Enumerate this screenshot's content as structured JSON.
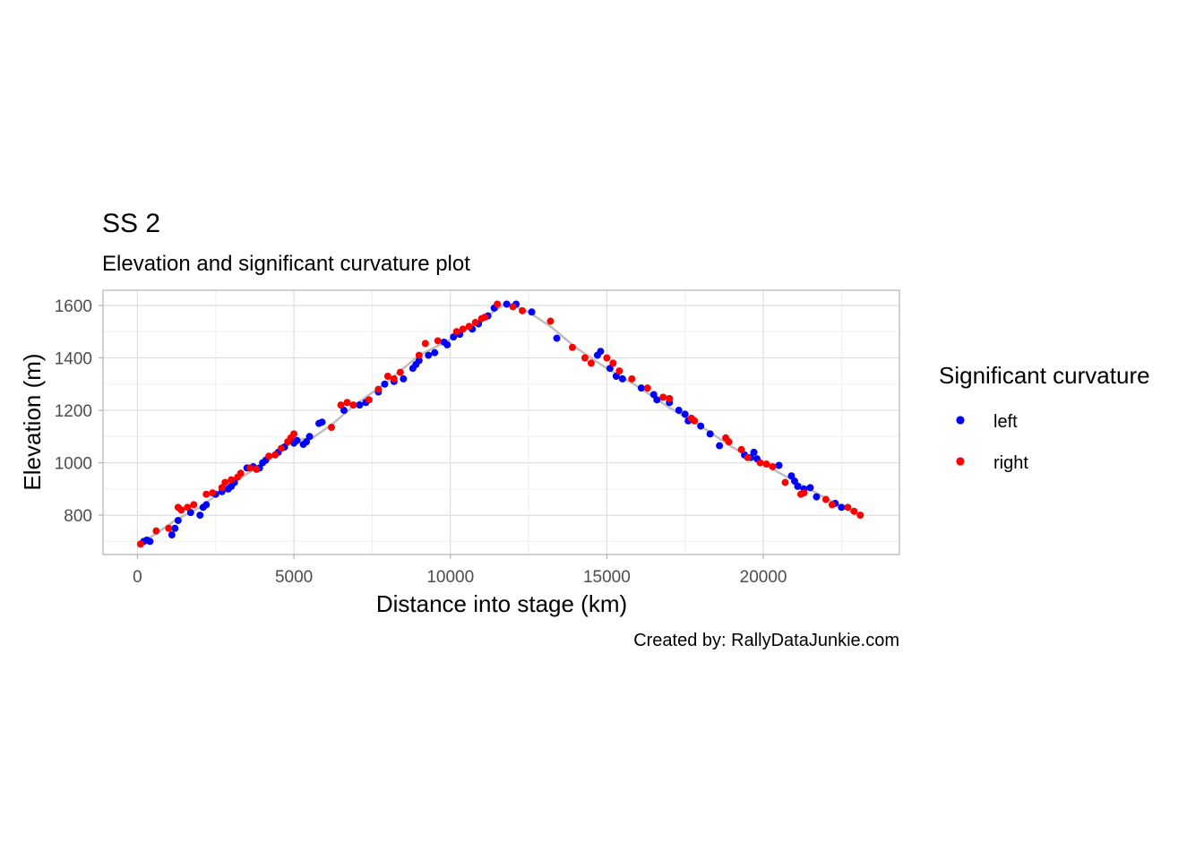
{
  "chart_data": {
    "type": "scatter",
    "title": "SS 2",
    "subtitle": "Elevation and significant curvature plot",
    "xlabel": "Distance into stage (km)",
    "ylabel": "Elevation (m)",
    "caption": "Created by: RallyDataJunkie.com",
    "xlim": [
      -1100,
      24350
    ],
    "ylim": [
      650,
      1658
    ],
    "xticks": [
      0,
      5000,
      10000,
      15000,
      20000
    ],
    "xtick_labels": [
      "0",
      "5000",
      "10000",
      "15000",
      "20000"
    ],
    "yticks": [
      800,
      1000,
      1200,
      1400,
      1600
    ],
    "ytick_labels": [
      "800",
      "1000",
      "1200",
      "1400",
      "1600"
    ],
    "grid": true,
    "legend_position": "right",
    "legend": {
      "title": "Significant curvature",
      "entries": [
        {
          "label": "left",
          "color": "#0000ff"
        },
        {
          "label": "right",
          "color": "#ff0000"
        }
      ]
    },
    "profile_line": {
      "color": "#bebebe",
      "x": [
        0,
        600,
        1200,
        2000,
        3000,
        4000,
        5000,
        5600,
        6200,
        7000,
        8000,
        9000,
        10000,
        11000,
        11800,
        12500,
        13200,
        14000,
        15000,
        16000,
        17000,
        18000,
        19000,
        20000,
        21000,
        22000,
        23100
      ],
      "y": [
        685,
        730,
        780,
        830,
        920,
        995,
        1085,
        1095,
        1145,
        1225,
        1310,
        1410,
        1470,
        1545,
        1610,
        1575,
        1520,
        1440,
        1360,
        1290,
        1210,
        1140,
        1060,
        995,
        930,
        865,
        795
      ]
    },
    "series": [
      {
        "name": "left",
        "color": "#0000ff",
        "x": [
          200,
          300,
          400,
          1100,
          1200,
          1300,
          1700,
          2000,
          2100,
          2200,
          2500,
          2700,
          2900,
          3000,
          3100,
          3500,
          3700,
          3900,
          4000,
          4100,
          4500,
          4700,
          5000,
          5100,
          5300,
          5400,
          5500,
          5800,
          5900,
          6600,
          7100,
          7300,
          7700,
          7900,
          8200,
          8500,
          8800,
          8900,
          9000,
          9300,
          9500,
          9800,
          9900,
          10100,
          10300,
          10700,
          10900,
          11200,
          11400,
          11800,
          12100,
          12600,
          13400,
          14700,
          14800,
          15100,
          15300,
          15500,
          16100,
          16500,
          16600,
          17000,
          17300,
          17500,
          17600,
          18000,
          18300,
          18600,
          19400,
          19600,
          19700,
          19800,
          20500,
          20900,
          21000,
          21100,
          21300,
          21500,
          21700,
          22300,
          22500
        ],
        "y": [
          700,
          705,
          700,
          725,
          750,
          780,
          810,
          800,
          830,
          840,
          880,
          890,
          900,
          910,
          925,
          980,
          985,
          980,
          1000,
          1010,
          1040,
          1060,
          1075,
          1085,
          1070,
          1080,
          1100,
          1150,
          1155,
          1200,
          1220,
          1230,
          1270,
          1300,
          1310,
          1320,
          1360,
          1375,
          1390,
          1410,
          1420,
          1460,
          1450,
          1480,
          1490,
          1510,
          1530,
          1560,
          1590,
          1605,
          1605,
          1575,
          1475,
          1410,
          1425,
          1360,
          1330,
          1320,
          1285,
          1260,
          1240,
          1230,
          1200,
          1185,
          1160,
          1140,
          1110,
          1065,
          1030,
          1020,
          1040,
          1015,
          990,
          950,
          930,
          910,
          900,
          905,
          870,
          845,
          830
        ],
        "marker_size": 8
      },
      {
        "name": "right",
        "color": "#ff0000",
        "x": [
          100,
          600,
          1000,
          1300,
          1400,
          1600,
          1800,
          2200,
          2400,
          2700,
          2800,
          3000,
          3200,
          3300,
          3600,
          3800,
          4200,
          4400,
          4600,
          4800,
          4900,
          5000,
          6200,
          6500,
          6700,
          6900,
          7400,
          7700,
          8000,
          8200,
          8400,
          9000,
          9200,
          9600,
          10200,
          10400,
          10600,
          10800,
          11000,
          11100,
          11500,
          12000,
          12300,
          13200,
          13900,
          14300,
          14500,
          15000,
          15200,
          15400,
          15800,
          16300,
          16800,
          17000,
          17700,
          17800,
          18800,
          18900,
          19300,
          19500,
          19900,
          20100,
          20300,
          20700,
          21200,
          21300,
          22000,
          22200,
          22700,
          22900,
          23100
        ],
        "y": [
          690,
          740,
          750,
          830,
          820,
          830,
          840,
          880,
          885,
          905,
          925,
          935,
          945,
          960,
          980,
          975,
          1025,
          1030,
          1055,
          1080,
          1095,
          1110,
          1135,
          1220,
          1230,
          1220,
          1240,
          1280,
          1330,
          1320,
          1345,
          1410,
          1455,
          1465,
          1500,
          1510,
          1520,
          1535,
          1550,
          1555,
          1605,
          1595,
          1580,
          1540,
          1440,
          1400,
          1380,
          1400,
          1380,
          1350,
          1320,
          1285,
          1250,
          1245,
          1170,
          1160,
          1095,
          1080,
          1050,
          1020,
          1000,
          995,
          985,
          925,
          880,
          885,
          860,
          840,
          830,
          815,
          800
        ],
        "marker_size": 8
      }
    ]
  }
}
